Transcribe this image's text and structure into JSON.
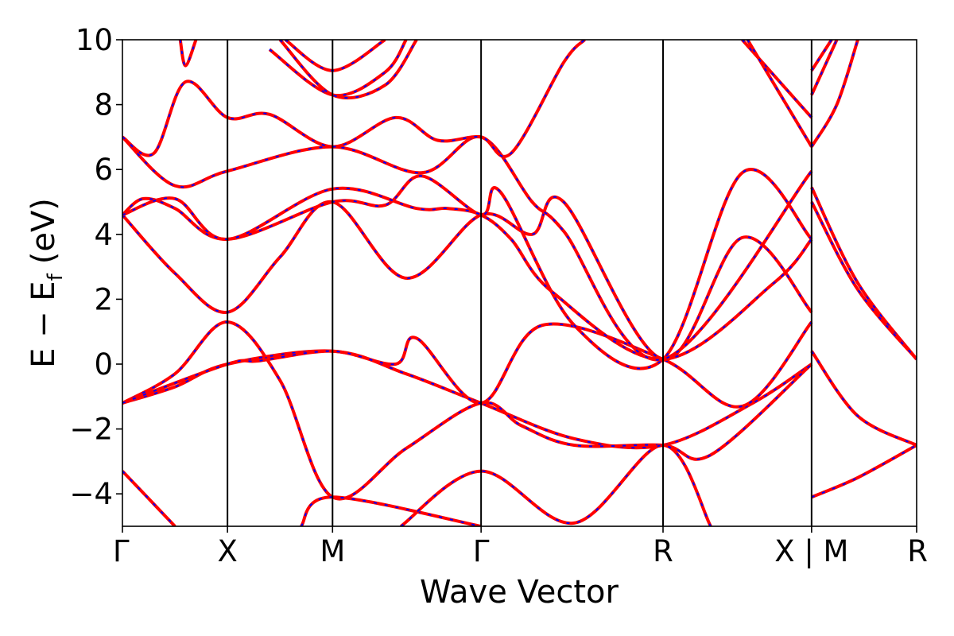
{
  "chart_data": {
    "type": "line",
    "xlabel": "Wave Vector",
    "ylabel": "E − E",
    "ylabel_sub": "f",
    "ylabel_unit": "(eV)",
    "ylim": [
      -5,
      10
    ],
    "yticks": [
      -4,
      -2,
      0,
      2,
      4,
      6,
      8,
      10
    ],
    "ytick_labels": [
      "−4",
      "−2",
      "0",
      "2",
      "4",
      "6",
      "8",
      "10"
    ],
    "kpath": {
      "positions": [
        0,
        1,
        2,
        3.414,
        5.146,
        6.56,
        7.56
      ],
      "labels": [
        "Γ",
        "X",
        "M",
        "Γ",
        "R",
        "X | M",
        "R"
      ]
    },
    "grid": false,
    "legend": "none",
    "colors": {
      "line_main": "#ff0000",
      "line_overlay": "#0000ff",
      "vlines": "#000000"
    },
    "series": [
      {
        "points": [
          [
            0,
            -1.2
          ],
          [
            0.5,
            -0.7
          ],
          [
            1,
            0.0
          ],
          [
            2,
            0.4
          ],
          [
            2.7,
            -0.3
          ],
          [
            3.414,
            -1.2
          ],
          [
            4.3,
            -2.3
          ],
          [
            5.146,
            -2.5
          ],
          [
            6.0,
            -1.2
          ],
          [
            6.56,
            0.0
          ]
        ]
      },
      {
        "points": [
          [
            0,
            -1.2
          ],
          [
            0.5,
            -0.3
          ],
          [
            1,
            1.3
          ],
          [
            1.5,
            -0.5
          ],
          [
            2,
            -4.1
          ],
          [
            2.7,
            -2.6
          ],
          [
            3.414,
            -1.2
          ],
          [
            3.8,
            -1.9
          ],
          [
            4.3,
            -2.5
          ],
          [
            5.146,
            -2.5
          ],
          [
            5.6,
            -2.8
          ],
          [
            6.56,
            0.0
          ]
        ]
      },
      {
        "points": [
          [
            0,
            -1.2
          ],
          [
            1,
            0.0
          ],
          [
            1.3,
            0.1
          ],
          [
            2,
            0.4
          ],
          [
            2.6,
            0.0
          ],
          [
            2.8,
            0.8
          ],
          [
            3.414,
            -1.2
          ],
          [
            4.0,
            1.2
          ],
          [
            5.146,
            0.15
          ],
          [
            5.9,
            -1.3
          ],
          [
            6.56,
            1.3
          ]
        ]
      },
      {
        "points": [
          [
            0,
            -3.3
          ],
          [
            0.5,
            -5.0
          ]
        ]
      },
      {
        "points": [
          [
            1.7,
            -5.0
          ],
          [
            2,
            -4.1
          ],
          [
            3.414,
            -5.0
          ]
        ]
      },
      {
        "points": [
          [
            2.65,
            -5.0
          ],
          [
            3.414,
            -3.3
          ],
          [
            4.3,
            -4.9
          ],
          [
            5.146,
            -2.5
          ],
          [
            5.6,
            -5.0
          ]
        ]
      },
      {
        "points": [
          [
            6.56,
            0.4
          ],
          [
            7.0,
            -1.6
          ],
          [
            7.56,
            -2.5
          ]
        ]
      },
      {
        "points": [
          [
            6.56,
            -4.1
          ],
          [
            7.0,
            -3.5
          ],
          [
            7.56,
            -2.5
          ]
        ]
      },
      {
        "points": [
          [
            0,
            4.6
          ],
          [
            0.5,
            2.8
          ],
          [
            1,
            1.6
          ],
          [
            1.5,
            3.3
          ],
          [
            2,
            5.0
          ],
          [
            2.7,
            2.65
          ],
          [
            3.414,
            4.6
          ],
          [
            3.9,
            4.0
          ],
          [
            4.2,
            5.0
          ],
          [
            5.146,
            0.15
          ],
          [
            5.9,
            3.9
          ],
          [
            6.56,
            1.6
          ]
        ]
      },
      {
        "points": [
          [
            0,
            4.6
          ],
          [
            0.2,
            5.1
          ],
          [
            0.5,
            4.8
          ],
          [
            1,
            3.85
          ],
          [
            2,
            5.0
          ],
          [
            2.5,
            4.9
          ],
          [
            2.85,
            5.8
          ],
          [
            3.414,
            4.6
          ],
          [
            3.6,
            5.3
          ],
          [
            4.3,
            1.2
          ],
          [
            5.146,
            0.15
          ],
          [
            5.9,
            5.9
          ],
          [
            6.56,
            3.85
          ]
        ]
      },
      {
        "points": [
          [
            0,
            4.6
          ],
          [
            0.5,
            5.1
          ],
          [
            1,
            3.85
          ],
          [
            2,
            5.4
          ],
          [
            2.8,
            4.8
          ],
          [
            3.1,
            4.8
          ],
          [
            3.414,
            4.6
          ],
          [
            3.7,
            3.85
          ],
          [
            4.1,
            2.2
          ],
          [
            5.146,
            0.15
          ],
          [
            6.2,
            2.5
          ],
          [
            6.56,
            3.85
          ]
        ]
      },
      {
        "points": [
          [
            0,
            7.0
          ],
          [
            0.5,
            5.5
          ],
          [
            1,
            5.95
          ],
          [
            2,
            6.7
          ],
          [
            2.85,
            5.9
          ],
          [
            3.414,
            7.0
          ],
          [
            3.9,
            5.0
          ],
          [
            4.2,
            4.1
          ],
          [
            5.146,
            0.15
          ],
          [
            6.56,
            5.95
          ]
        ]
      },
      {
        "points": [
          [
            0,
            7.0
          ],
          [
            0.3,
            6.5
          ],
          [
            0.6,
            8.7
          ],
          [
            1,
            7.6
          ],
          [
            1.4,
            7.7
          ],
          [
            2,
            6.7
          ],
          [
            2.6,
            7.6
          ],
          [
            3.0,
            6.9
          ],
          [
            3.414,
            7.0
          ],
          [
            3.7,
            6.5
          ],
          [
            4.2,
            9.3
          ],
          [
            4.4,
            10.0
          ]
        ]
      },
      {
        "points": [
          [
            0.55,
            10.0
          ],
          [
            0.6,
            9.2
          ],
          [
            0.7,
            10.0
          ]
        ]
      },
      {
        "points": [
          [
            1.4,
            9.7
          ],
          [
            2,
            8.3
          ],
          [
            2.5,
            9.0
          ],
          [
            2.7,
            10.0
          ]
        ]
      },
      {
        "points": [
          [
            1.55,
            10.0
          ],
          [
            2,
            9.05
          ],
          [
            2.5,
            10.0
          ]
        ]
      },
      {
        "points": [
          [
            1.5,
            10.0
          ],
          [
            2,
            8.3
          ],
          [
            2.5,
            8.6
          ],
          [
            2.8,
            10.0
          ]
        ]
      },
      {
        "points": [
          [
            5.9,
            10.0
          ],
          [
            6.56,
            7.6
          ]
        ]
      },
      {
        "points": [
          [
            5.95,
            10.0
          ],
          [
            6.56,
            6.7
          ]
        ]
      },
      {
        "points": [
          [
            6.56,
            6.7
          ],
          [
            6.8,
            8.0
          ],
          [
            7.0,
            10.0
          ]
        ]
      },
      {
        "points": [
          [
            6.56,
            8.3
          ],
          [
            6.8,
            10.0
          ]
        ]
      },
      {
        "points": [
          [
            6.56,
            9.05
          ],
          [
            6.75,
            10.0
          ]
        ]
      },
      {
        "points": [
          [
            6.56,
            5.45
          ],
          [
            7.0,
            2.5
          ],
          [
            7.56,
            0.15
          ]
        ]
      },
      {
        "points": [
          [
            6.56,
            5.0
          ],
          [
            7.0,
            2.3
          ],
          [
            7.56,
            0.15
          ]
        ]
      }
    ]
  }
}
